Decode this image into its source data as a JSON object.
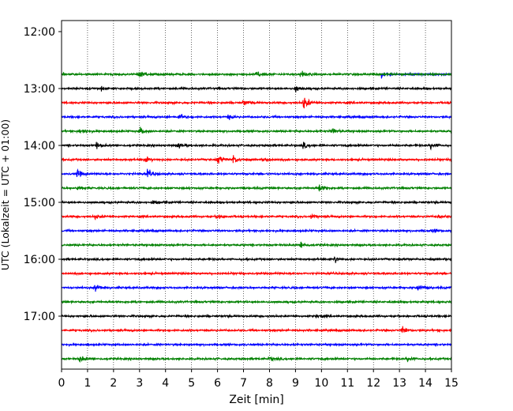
{
  "chart_data": {
    "type": "line",
    "subtype": "helicorder",
    "xlabel": "Zeit  [min]",
    "ylabel": "UTC (Lokalzeit = UTC + 01:00)",
    "xlim": [
      0,
      15
    ],
    "x_ticks": [
      0,
      1,
      2,
      3,
      4,
      5,
      6,
      7,
      8,
      9,
      10,
      11,
      12,
      13,
      14,
      15
    ],
    "y_tick_labels": [
      "12:00",
      "13:00",
      "14:00",
      "15:00",
      "16:00",
      "17:00"
    ],
    "grid": "vertical dotted at each minute",
    "trace_colors": [
      "#0000ff",
      "#008000",
      "#000000",
      "#ff0000"
    ],
    "trace_minutes_per_line": 15,
    "rows": [
      {
        "start": "12:45",
        "color": "#0000ff",
        "data_start_min": 12.3,
        "events": [
          {
            "t": 12.3,
            "amp": 1.2
          }
        ]
      },
      {
        "start": "12:45",
        "color": "#008000",
        "events": [
          {
            "t": 3.0,
            "amp": 0.9
          },
          {
            "t": 7.5,
            "amp": 1.0
          },
          {
            "t": 9.2,
            "amp": 0.8
          }
        ]
      },
      {
        "start": "13:00",
        "color": "#000000",
        "events": [
          {
            "t": 1.5,
            "amp": 0.6
          },
          {
            "t": 9.0,
            "amp": 0.7
          }
        ]
      },
      {
        "start": "13:15",
        "color": "#ff0000",
        "events": [
          {
            "t": 7.0,
            "amp": 0.8
          },
          {
            "t": 9.3,
            "amp": 1.8
          }
        ]
      },
      {
        "start": "13:30",
        "color": "#0000ff",
        "events": [
          {
            "t": 4.5,
            "amp": 0.9
          },
          {
            "t": 6.4,
            "amp": 0.5
          }
        ]
      },
      {
        "start": "13:45",
        "color": "#008000",
        "events": [
          {
            "t": 0.7,
            "amp": 0.7
          },
          {
            "t": 3.0,
            "amp": 0.9
          },
          {
            "t": 10.4,
            "amp": 0.8
          }
        ]
      },
      {
        "start": "14:00",
        "color": "#000000",
        "events": [
          {
            "t": 1.3,
            "amp": 0.8
          },
          {
            "t": 4.5,
            "amp": 0.6
          },
          {
            "t": 9.3,
            "amp": 0.7
          },
          {
            "t": 14.2,
            "amp": 0.9
          }
        ]
      },
      {
        "start": "14:15",
        "color": "#ff0000",
        "events": [
          {
            "t": 3.2,
            "amp": 0.8
          },
          {
            "t": 6.0,
            "amp": 1.2
          },
          {
            "t": 6.6,
            "amp": 1.0
          },
          {
            "t": 7.8,
            "amp": 0.5
          }
        ]
      },
      {
        "start": "14:30",
        "color": "#0000ff",
        "events": [
          {
            "t": 0.6,
            "amp": 1.0
          },
          {
            "t": 3.3,
            "amp": 1.1
          }
        ]
      },
      {
        "start": "14:45",
        "color": "#008000",
        "events": [
          {
            "t": 0.6,
            "amp": 0.5
          },
          {
            "t": 9.9,
            "amp": 1.1
          }
        ]
      },
      {
        "start": "15:00",
        "color": "#000000",
        "events": [
          {
            "t": 3.5,
            "amp": 0.5
          }
        ]
      },
      {
        "start": "15:15",
        "color": "#ff0000",
        "events": [
          {
            "t": 1.3,
            "amp": 0.6
          },
          {
            "t": 6.0,
            "amp": 0.7
          },
          {
            "t": 9.6,
            "amp": 0.5
          },
          {
            "t": 14.5,
            "amp": 0.4
          }
        ]
      },
      {
        "start": "15:30",
        "color": "#0000ff",
        "events": [
          {
            "t": 14.3,
            "amp": 0.4
          }
        ]
      },
      {
        "start": "15:45",
        "color": "#008000",
        "events": [
          {
            "t": 9.2,
            "amp": 0.9
          }
        ]
      },
      {
        "start": "16:00",
        "color": "#000000",
        "events": [
          {
            "t": 10.5,
            "amp": 0.9
          }
        ]
      },
      {
        "start": "16:15",
        "color": "#ff0000",
        "events": []
      },
      {
        "start": "16:30",
        "color": "#0000ff",
        "events": [
          {
            "t": 1.3,
            "amp": 1.0
          },
          {
            "t": 13.7,
            "amp": 0.9
          }
        ]
      },
      {
        "start": "16:45",
        "color": "#008000",
        "events": []
      },
      {
        "start": "17:00",
        "color": "#000000",
        "events": [
          {
            "t": 9.8,
            "amp": 0.4
          }
        ]
      },
      {
        "start": "17:15",
        "color": "#ff0000",
        "events": [
          {
            "t": 13.1,
            "amp": 1.0
          }
        ]
      },
      {
        "start": "17:30",
        "color": "#0000ff",
        "events": []
      },
      {
        "start": "17:45",
        "color": "#008000",
        "events": [
          {
            "t": 0.7,
            "amp": 0.7
          },
          {
            "t": 8.0,
            "amp": 0.5
          },
          {
            "t": 13.3,
            "amp": 0.6
          }
        ]
      }
    ]
  }
}
